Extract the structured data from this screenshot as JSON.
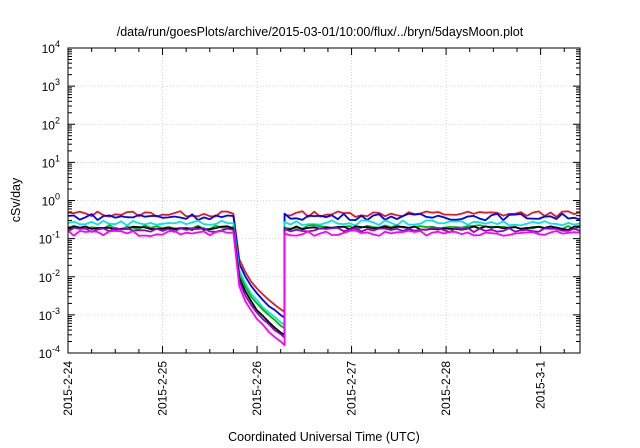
{
  "chart_data": {
    "type": "line",
    "title": "/data/run/goesPlots/archive/2015-03-01/10:00/flux/../bryn/5daysMoon.plot",
    "xlabel": "Coordinated Universal Time (UTC)",
    "ylabel": "cSv/day",
    "yscale": "log",
    "ylim": [
      0.0001,
      10000
    ],
    "xlim": [
      "2015-02-24T00:00",
      "2015-03-01T10:00"
    ],
    "grid": true,
    "legend": "none",
    "y_ticks": [
      {
        "base": "10",
        "exp": "-4"
      },
      {
        "base": "10",
        "exp": "-3"
      },
      {
        "base": "10",
        "exp": "-2"
      },
      {
        "base": "10",
        "exp": "-1"
      },
      {
        "base": "10",
        "exp": "0"
      },
      {
        "base": "10",
        "exp": "1"
      },
      {
        "base": "10",
        "exp": "2"
      },
      {
        "base": "10",
        "exp": "3"
      },
      {
        "base": "10",
        "exp": "4"
      }
    ],
    "x_ticks": [
      "2015-2-24",
      "2015-2-25",
      "2015-2-26",
      "2015-2-27",
      "2015-2-28",
      "2015-3-1"
    ],
    "x_tick_dates": [
      "2015-02-24T00:00",
      "2015-02-25T00:00",
      "2015-02-26T00:00",
      "2015-02-27T00:00",
      "2015-02-28T00:00",
      "2015-03-01T00:00"
    ],
    "gap": {
      "start": "2015-02-25T18:00",
      "end": "2015-02-26T07:00"
    },
    "series": [
      {
        "color": "#e41a1c",
        "level": 0.45,
        "noise": 0.08,
        "gap_end": 0.0012
      },
      {
        "color": "#0000ff",
        "level": 0.38,
        "noise": 0.09,
        "gap_end": 0.00085
      },
      {
        "color": "#00e5e5",
        "level": 0.26,
        "noise": 0.07,
        "gap_end": 0.00055
      },
      {
        "color": "#00b800",
        "level": 0.2,
        "noise": 0.06,
        "gap_end": 0.00045
      },
      {
        "color": "#000000",
        "level": 0.19,
        "noise": 0.05,
        "gap_end": 0.0003
      },
      {
        "color": "#9400d3",
        "level": 0.17,
        "noise": 0.06,
        "gap_end": 0.00025
      },
      {
        "color": "#ff00ff",
        "level": 0.14,
        "noise": 0.08,
        "gap_end": 0.00016
      }
    ]
  }
}
